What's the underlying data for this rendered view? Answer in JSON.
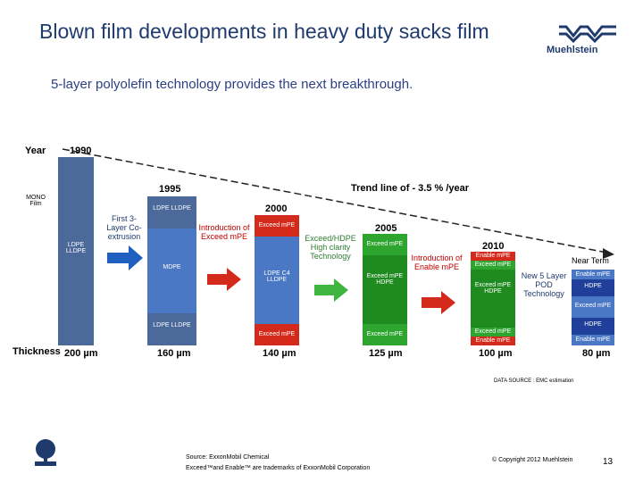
{
  "title": "Blown film developments in heavy duty sacks film",
  "subtitle": "5-layer polyolefin technology provides the next breakthrough.",
  "logo": {
    "brand": "Muehlstein"
  },
  "axis": {
    "year_label": "Year",
    "thickness_label": "Thickness",
    "trend_line": "Trend line of - 3.5 % /year"
  },
  "mono_film": "MONO Film",
  "stages": [
    {
      "year": "1990",
      "thickness": "200 µm",
      "layers": [
        "LDPE LLDPE"
      ]
    },
    {
      "year": "1995",
      "thickness": "160 µm",
      "layers": [
        "LDPE LLDPE",
        "MDPE",
        "LDPE LLDPE"
      ]
    },
    {
      "year": "2000",
      "thickness": "140 µm",
      "layers": [
        "Exceed mPE",
        "LDPE C4 LLDPE",
        "Exceed mPE"
      ]
    },
    {
      "year": "2005",
      "thickness": "125 µm",
      "layers": [
        "Exceed mPE",
        "Exceed mPE HDPE",
        "Exceed mPE"
      ]
    },
    {
      "year": "2010",
      "thickness": "100 µm",
      "layers": [
        "Enable mPE",
        "Exceed mPE",
        "Exceed mPE HDPE",
        "Exceed mPE",
        "Enable mPE"
      ]
    },
    {
      "year": "Near Term",
      "thickness": "80 µm",
      "layers": [
        "Enable mPE",
        "HDPE",
        "Exceed mPE",
        "HDPE",
        "Enable mPE"
      ]
    }
  ],
  "annotations": {
    "first_coextrusion": "First 3-Layer Co-extrusion",
    "introduction_exceed": "Introduction of Exceed mPE",
    "exceed_hdpe": "Exceed/HDPE High clarity Technology",
    "introduction_enable": "Introduction of Enable mPE",
    "new_5_layer": "New 5 Layer POD Technology"
  },
  "data_source": "DATA SOURCE : EMC estimation",
  "footer": {
    "source": "Source: ExxonMobil Chemical",
    "trademark": "Exceed™and Enable™ are trademarks of ExxonMobil Corporation",
    "copyright": "© Copyright 2012 Muehlstein",
    "page": "13"
  },
  "colors": {
    "title": "#1f3b6e",
    "steel": "#4b6a9b",
    "blue": "#4a78c4",
    "green": "#2ea52e",
    "red": "#d42a1b",
    "arrow_blue": "#1f5fbf",
    "arrow_green": "#3fb53f"
  }
}
